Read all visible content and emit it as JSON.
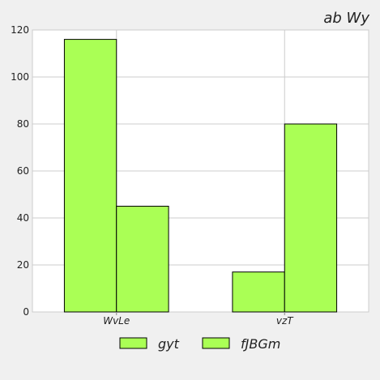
{
  "chart_data": {
    "type": "bar",
    "title": "ab Wy",
    "xlabel": "",
    "ylabel": "",
    "categories": [
      "WvLe",
      "vzT"
    ],
    "series": [
      {
        "name": "gyt",
        "values": [
          116,
          17
        ]
      },
      {
        "name": "fJBGm",
        "values": [
          45,
          80
        ]
      }
    ],
    "ylim": [
      0,
      120
    ],
    "yticks": [
      0,
      20,
      40,
      60,
      80,
      100,
      120
    ],
    "grid": true,
    "legend_position": "bottom",
    "colors": {
      "bar_fill": "#aaff55",
      "bar_stroke": "#000000",
      "plot_background": "#ffffff",
      "page_background": "#f0f0f0",
      "grid": "#cccccc"
    }
  }
}
